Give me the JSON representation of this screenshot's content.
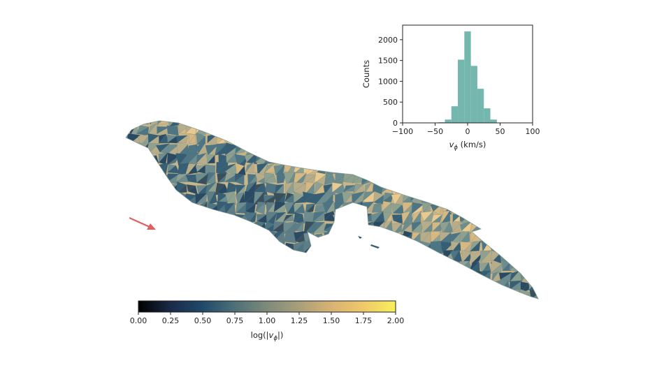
{
  "chart_data": [
    {
      "type": "bar",
      "role": "histogram",
      "xlabel_var": "v",
      "xlabel_sub": "ϕ",
      "xlabel_unit": " (km/s)",
      "ylabel": "Counts",
      "xlim": [
        -100,
        100
      ],
      "ylim": [
        0,
        2350
      ],
      "xticks": [
        -100,
        -50,
        0,
        50,
        100
      ],
      "xtick_labels": [
        "−100",
        "−50",
        "0",
        "50",
        "100"
      ],
      "yticks": [
        0,
        500,
        1000,
        1500,
        2000
      ],
      "ytick_labels": [
        "0",
        "500",
        "1000",
        "1500",
        "2000"
      ],
      "bins": [
        {
          "x0": -45,
          "x1": -35,
          "value": 15
        },
        {
          "x0": -35,
          "x1": -25,
          "value": 80
        },
        {
          "x0": -25,
          "x1": -15,
          "value": 400
        },
        {
          "x0": -15,
          "x1": -5,
          "value": 1520
        },
        {
          "x0": -5,
          "x1": 5,
          "value": 2200
        },
        {
          "x0": 5,
          "x1": 15,
          "value": 1370
        },
        {
          "x0": 15,
          "x1": 25,
          "value": 820
        },
        {
          "x0": 25,
          "x1": 35,
          "value": 350
        },
        {
          "x0": 35,
          "x1": 45,
          "value": 80
        }
      ],
      "bar_color": "#74b7ae"
    },
    {
      "type": "heatmap",
      "role": "colorbar",
      "label_prefix": "log(|",
      "label_var": "v",
      "label_sub": "ϕ",
      "label_suffix": "|)",
      "range": [
        0,
        2
      ],
      "ticks": [
        0,
        0.25,
        0.5,
        0.75,
        1,
        1.25,
        1.5,
        1.75,
        2
      ],
      "tick_labels": [
        "0.00",
        "0.25",
        "0.50",
        "0.75",
        "1.00",
        "1.25",
        "1.50",
        "1.75",
        "2.00"
      ],
      "colormap": [
        "#000000",
        "#1b2a48",
        "#1f4a6a",
        "#4d7078",
        "#7d8a7a",
        "#a99f7a",
        "#d8b274",
        "#f0c86a",
        "#f7f05a"
      ]
    }
  ],
  "render": {
    "surface_palette": [
      "#e8c98f",
      "#d6b883",
      "#b8ad8a",
      "#8ea08f",
      "#6d8c8e",
      "#4d7583",
      "#365f76",
      "#2a4a63",
      "#3a4f5c",
      "#5f7d86"
    ],
    "arrow_color": "#e06060",
    "tick_color": "#222222"
  }
}
